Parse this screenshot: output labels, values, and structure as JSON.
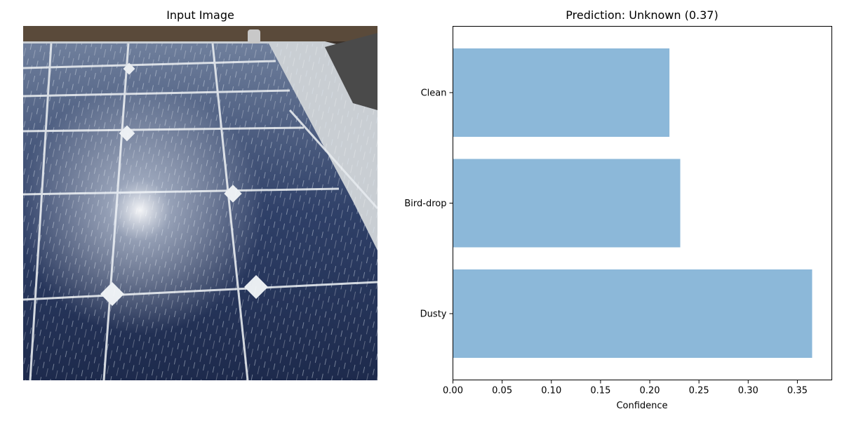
{
  "image_panel": {
    "title": "Input Image"
  },
  "chart_data": {
    "type": "bar",
    "orientation": "horizontal",
    "title": "Prediction: Unknown (0.37)",
    "categories": [
      "Dusty",
      "Bird-drop",
      "Clean"
    ],
    "values": [
      0.365,
      0.231,
      0.22
    ],
    "xlabel": "Confidence",
    "ylabel": "",
    "xlim": [
      0,
      0.385
    ],
    "xticks": [
      "0.00",
      "0.05",
      "0.10",
      "0.15",
      "0.20",
      "0.25",
      "0.30",
      "0.35"
    ],
    "bar_color": "#8cb8d9",
    "grid": false
  }
}
